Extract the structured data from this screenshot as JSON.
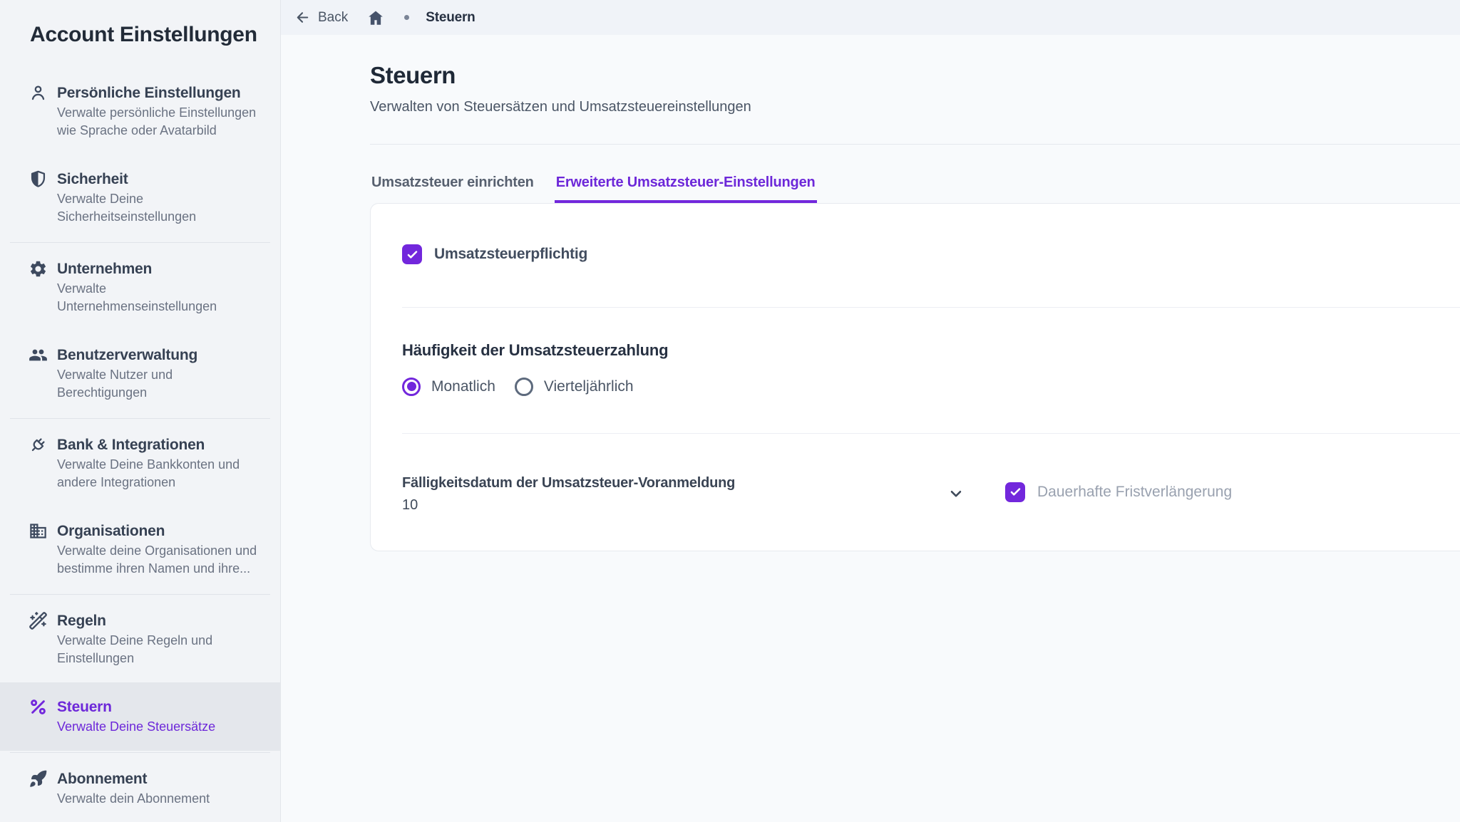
{
  "colors": {
    "accent_text": "#6d28d9",
    "accent_control": "#7227dc",
    "sidebar_bg": "#f2f4f7",
    "sidebar_active_bg": "#e4e7ec",
    "topbar_bg": "#f0f3f8",
    "content_bg": "#f8fafc"
  },
  "sidebar": {
    "title": "Account Einstellungen",
    "items": [
      {
        "key": "personal-settings",
        "icon": "user-icon",
        "label": "Persönliche Einstellungen",
        "description": "Verwalte persönliche Einstellungen wie Sprache oder Avatarbild",
        "active": false,
        "divider_after": false
      },
      {
        "key": "security",
        "icon": "shield-icon",
        "label": "Sicherheit",
        "description": "Verwalte Deine Sicherheitseinstellungen",
        "active": false,
        "divider_after": true
      },
      {
        "key": "company",
        "icon": "gear-icon",
        "label": "Unternehmen",
        "description": "Verwalte Unternehmenseinstellungen",
        "active": false,
        "divider_after": false
      },
      {
        "key": "user-management",
        "icon": "users-icon",
        "label": "Benutzerverwaltung",
        "description": "Verwalte Nutzer und Berechtigungen",
        "active": false,
        "divider_after": true
      },
      {
        "key": "bank-integrations",
        "icon": "plug-icon",
        "label": "Bank & Integrationen",
        "description": "Verwalte Deine Bankkonten und andere Integrationen",
        "active": false,
        "divider_after": false
      },
      {
        "key": "organizations",
        "icon": "building-icon",
        "label": "Organisationen",
        "description": "Verwalte deine Organisationen und bestimme ihren Namen und ihre...",
        "active": false,
        "divider_after": true
      },
      {
        "key": "rules",
        "icon": "wand-icon",
        "label": "Regeln",
        "description": "Verwalte Deine Regeln und Einstellungen",
        "active": false,
        "divider_after": false
      },
      {
        "key": "taxes",
        "icon": "percent-icon",
        "label": "Steuern",
        "description": "Verwalte Deine Steuersätze",
        "active": true,
        "divider_after": true
      },
      {
        "key": "subscription",
        "icon": "rocket-icon",
        "label": "Abonnement",
        "description": "Verwalte dein Abonnement",
        "active": false,
        "divider_after": false
      }
    ]
  },
  "topbar": {
    "back_label": "Back",
    "breadcrumb_current": "Steuern"
  },
  "page": {
    "title": "Steuern",
    "subtitle": "Verwalten von Steuersätzen und Umsatzsteuereinstellungen"
  },
  "tabs": [
    {
      "key": "vat-setup",
      "label": "Umsatzsteuer einrichten",
      "active": false
    },
    {
      "key": "advanced-vat-settings",
      "label": "Erweiterte Umsatzsteuer-Einstellungen",
      "active": true
    }
  ],
  "form": {
    "vat_liable": {
      "label": "Umsatzsteuerpflichtig",
      "checked": true
    },
    "payment_frequency": {
      "label": "Häufigkeit der Umsatzsteuerzahlung",
      "options": [
        {
          "key": "monthly",
          "label": "Monatlich",
          "selected": true
        },
        {
          "key": "quarterly",
          "label": "Vierteljährlich",
          "selected": false
        }
      ]
    },
    "due_date": {
      "label": "Fälligkeitsdatum der Umsatzsteuer-Voranmeldung",
      "value": "10"
    },
    "permanent_extension": {
      "label": "Dauerhafte Fristverlängerung",
      "checked": true
    }
  }
}
